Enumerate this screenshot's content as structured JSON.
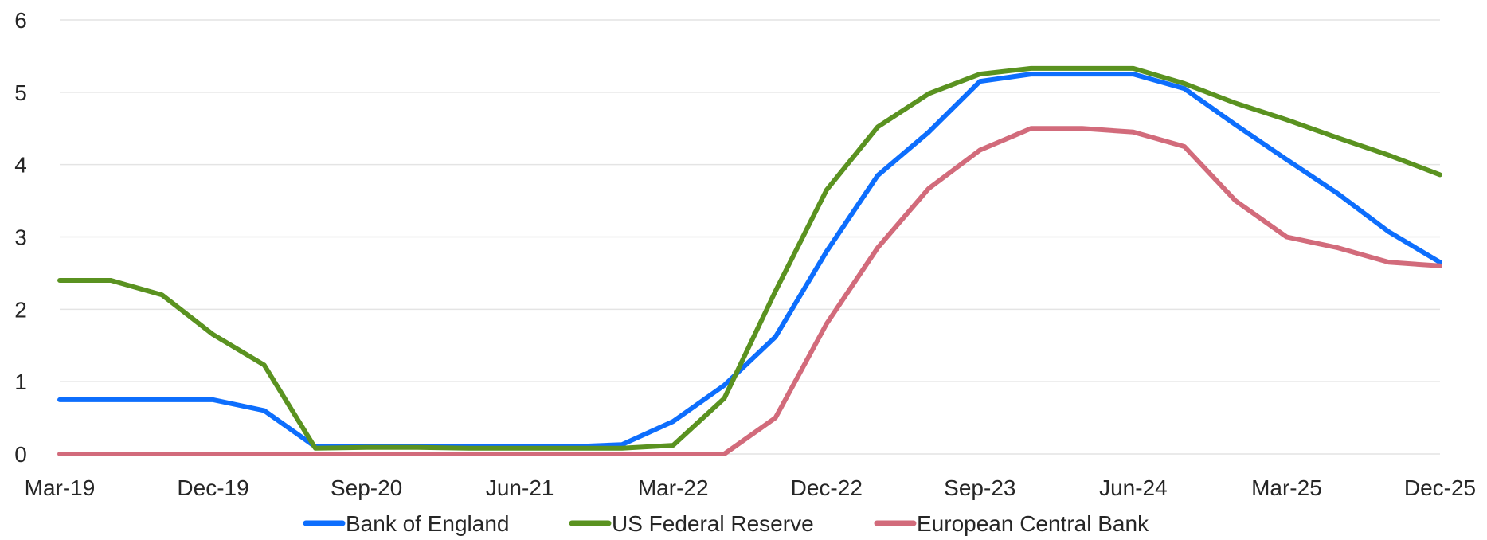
{
  "chart_data": {
    "type": "line",
    "title": "",
    "xlabel": "",
    "ylabel": "",
    "x_tick_labels": [
      "Mar-19",
      "Dec-19",
      "Sep-20",
      "Jun-21",
      "Mar-22",
      "Dec-22",
      "Sep-23",
      "Jun-24",
      "Mar-25",
      "Dec-25"
    ],
    "y_ticks": [
      0,
      1,
      2,
      3,
      4,
      5,
      6
    ],
    "ylim": [
      0,
      6
    ],
    "grid": "horizontal",
    "legend_position": "bottom",
    "x": [
      "Mar-19",
      "Jun-19",
      "Sep-19",
      "Dec-19",
      "Mar-20",
      "Jun-20",
      "Sep-20",
      "Dec-20",
      "Mar-21",
      "Jun-21",
      "Sep-21",
      "Dec-21",
      "Mar-22",
      "Jun-22",
      "Sep-22",
      "Dec-22",
      "Mar-23",
      "Jun-23",
      "Sep-23",
      "Dec-23",
      "Mar-24",
      "Jun-24",
      "Sep-24",
      "Dec-24",
      "Mar-25",
      "Jun-25",
      "Sep-25",
      "Dec-25"
    ],
    "series": [
      {
        "name": "Bank of England",
        "color": "#0d6efd",
        "values": [
          0.75,
          0.75,
          0.75,
          0.75,
          0.6,
          0.1,
          0.1,
          0.1,
          0.1,
          0.1,
          0.1,
          0.13,
          0.45,
          0.95,
          1.62,
          2.8,
          3.85,
          4.45,
          5.15,
          5.25,
          5.25,
          5.25,
          5.05,
          4.55,
          4.07,
          3.6,
          3.07,
          2.65
        ]
      },
      {
        "name": "US Federal Reserve",
        "color": "#5a9220",
        "values": [
          2.4,
          2.4,
          2.2,
          1.65,
          1.23,
          0.08,
          0.09,
          0.09,
          0.08,
          0.08,
          0.08,
          0.08,
          0.12,
          0.77,
          2.25,
          3.65,
          4.52,
          4.98,
          5.25,
          5.33,
          5.33,
          5.33,
          5.12,
          4.85,
          4.62,
          4.37,
          4.13,
          3.86
        ]
      },
      {
        "name": "European Central Bank",
        "color": "#d26b7b",
        "values": [
          0,
          0,
          0,
          0,
          0,
          0,
          0,
          0,
          0,
          0,
          0,
          0,
          0,
          0,
          0.5,
          1.8,
          2.85,
          3.67,
          4.2,
          4.5,
          4.5,
          4.45,
          4.25,
          3.5,
          3.0,
          2.85,
          2.65,
          2.6
        ]
      }
    ]
  }
}
